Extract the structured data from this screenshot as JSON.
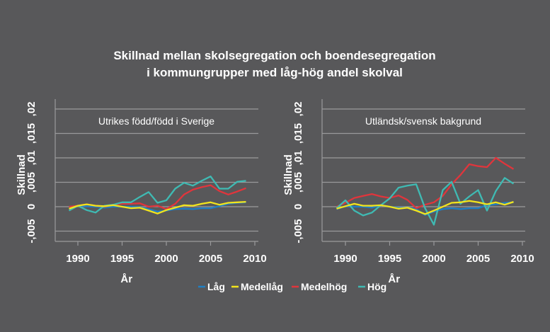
{
  "chart_data": {
    "type": "line",
    "title": [
      "Skillnad mellan skolsegregation och boendesegregation",
      "i kommungrupper med låg-hög andel skolval"
    ],
    "legend": {
      "placement": "bottom-center",
      "entries": [
        "Låg",
        "Medellåg",
        "Medelhög",
        "Hög"
      ]
    },
    "colors": {
      "Låg": "#1f7fc4",
      "Medellåg": "#f2e41c",
      "Medelhög": "#e0353c",
      "Hög": "#3fbab3",
      "background": "#58585a",
      "grid": "#9a9a9c"
    },
    "x": [
      1989,
      1990,
      1991,
      1992,
      1993,
      1994,
      1995,
      1996,
      1997,
      1998,
      1999,
      2000,
      2001,
      2002,
      2003,
      2004,
      2005,
      2006,
      2007,
      2008,
      2009
    ],
    "panels": [
      {
        "subtitle": "Utrikes född/född i Sverige",
        "xlabel": "År",
        "ylabel": "Skillnad",
        "xticks": [
          "1990",
          "1995",
          "2000",
          "2005",
          "2010"
        ],
        "yticks": [
          "-,005",
          "0",
          ",005",
          ",01",
          ",015",
          ",02"
        ],
        "ylim": [
          -0.005,
          0.02
        ],
        "xlim": [
          1987.5,
          2010.5
        ],
        "grid": true,
        "series": [
          {
            "name": "Låg",
            "values": [
              0,
              0.0002,
              0.0001,
              0,
              -0.0002,
              0,
              0,
              0,
              -0.0001,
              -0.0005,
              -0.001,
              -0.0008,
              -0.0005,
              -0.0004,
              -0.0005,
              -0.0003,
              -0.0003,
              0.0001,
              0.0006,
              0.0008,
              0.0009
            ]
          },
          {
            "name": "Medelhög",
            "values": [
              0,
              0.0002,
              0.0005,
              0.0002,
              0,
              0.0004,
              0.0006,
              0.0006,
              0.0007,
              0,
              0.0002,
              -0.0005,
              0.0006,
              0.0025,
              0.0035,
              0.004,
              0.0044,
              0.0032,
              0.0025,
              0.0031,
              0.0038
            ]
          },
          {
            "name": "Hög",
            "values": [
              -0.0008,
              0.0002,
              -0.0007,
              -0.0012,
              0.0002,
              0.0004,
              0.0009,
              0.0009,
              0.002,
              0.003,
              0.0008,
              0.0013,
              0.0037,
              0.0049,
              0.0043,
              0.0053,
              0.0062,
              0.0037,
              0.0037,
              0.0051,
              0.0053
            ]
          },
          {
            "name": "Medellåg",
            "values": [
              -0.0004,
              0.0002,
              0.0005,
              0.0002,
              0.0001,
              0.0003,
              0,
              -0.0003,
              -0.0002,
              -0.0008,
              -0.0014,
              -0.0007,
              -0.0002,
              0.0003,
              0.0002,
              0.0006,
              0.0009,
              0.0004,
              0.0008,
              0.0009,
              0.001
            ]
          }
        ]
      },
      {
        "subtitle": "Utländsk/svensk bakgrund",
        "xlabel": "År",
        "ylabel": "Skillnad",
        "xticks": [
          "1990",
          "1995",
          "2000",
          "2005",
          "2010"
        ],
        "yticks": [
          "-,005",
          "0",
          ",005",
          ",01",
          ",015",
          ",02"
        ],
        "ylim": [
          -0.005,
          0.02
        ],
        "xlim": [
          1987.5,
          2010.5
        ],
        "grid": true,
        "series": [
          {
            "name": "Låg",
            "values": [
              -0.0005,
              0.0001,
              0,
              0,
              -0.0002,
              0.0003,
              0,
              -0.0002,
              -0.0002,
              -0.0005,
              -0.0017,
              -0.001,
              -0.0005,
              -0.0003,
              -0.0005,
              -0.0003,
              -0.0003,
              0.0003,
              0.0005,
              0.0008,
              0.0009
            ]
          },
          {
            "name": "Medelhög",
            "values": [
              0,
              0.0008,
              0.0018,
              0.0022,
              0.0026,
              0.0021,
              0.0018,
              0.0023,
              0.0014,
              -0.0003,
              0.0004,
              0.0009,
              0.0022,
              0.0046,
              0.0065,
              0.0087,
              0.0083,
              0.0081,
              0.01,
              0.0088,
              0.0077
            ]
          },
          {
            "name": "Hög",
            "values": [
              -0.0003,
              0.0013,
              -0.0008,
              -0.0018,
              -0.0012,
              0.0003,
              0.0017,
              0.0039,
              0.0043,
              0.0046,
              -0.0003,
              -0.0037,
              0.0034,
              0.0051,
              0.0006,
              0.0021,
              0.0034,
              -0.0008,
              0.0032,
              0.0059,
              0.0047
            ]
          },
          {
            "name": "Medellåg",
            "values": [
              -0.0004,
              0.0001,
              0.0006,
              0.0002,
              0.0002,
              0.0003,
              0,
              -0.0004,
              -0.0002,
              -0.0008,
              -0.0015,
              -0.0008,
              0,
              0.0008,
              0.0009,
              0.0012,
              0.0009,
              0.0005,
              0.0009,
              0.0004,
              0.001
            ]
          }
        ]
      }
    ]
  }
}
